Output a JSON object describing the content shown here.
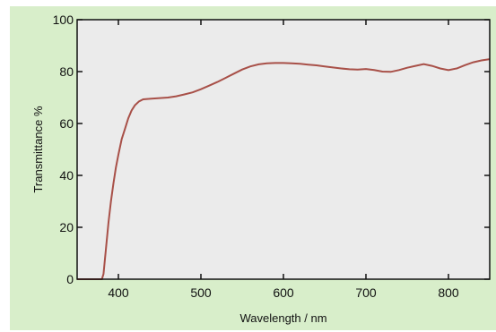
{
  "colors": {
    "background": "#d8eeca",
    "plot_area": "#ebebeb",
    "line": "#a85048",
    "axis": "#111111"
  },
  "chart_data": {
    "type": "line",
    "title": "",
    "xlabel": "Wavelength / nm",
    "ylabel": "Transmittance %",
    "xlim": [
      350,
      850
    ],
    "ylim": [
      0,
      100
    ],
    "xticks": [
      400,
      500,
      600,
      700,
      800
    ],
    "yticks": [
      0,
      20,
      40,
      60,
      80,
      100
    ],
    "grid": false,
    "legend": "none",
    "series": [
      {
        "x": [
          350,
          380,
          382,
          385,
          388,
          391,
          394,
          397,
          400,
          404,
          408,
          412,
          416,
          420,
          425,
          430,
          440,
          450,
          460,
          470,
          480,
          490,
          500,
          510,
          520,
          530,
          540,
          550,
          560,
          570,
          580,
          590,
          600,
          610,
          620,
          630,
          640,
          650,
          660,
          670,
          680,
          690,
          700,
          710,
          720,
          730,
          740,
          750,
          760,
          770,
          780,
          790,
          800,
          810,
          820,
          830,
          840,
          850
        ],
        "y": [
          0,
          0,
          2,
          12,
          22,
          30,
          37,
          43,
          48,
          54,
          58,
          62,
          65,
          67,
          68.5,
          69.3,
          69.6,
          69.8,
          70,
          70.5,
          71.2,
          72,
          73.2,
          74.6,
          76,
          77.6,
          79.2,
          80.8,
          82,
          82.8,
          83.2,
          83.3,
          83.3,
          83.2,
          83,
          82.7,
          82.4,
          82,
          81.6,
          81.2,
          80.9,
          80.8,
          81,
          80.6,
          80,
          79.9,
          80.6,
          81.5,
          82.2,
          82.9,
          82.2,
          81.2,
          80.6,
          81.2,
          82.5,
          83.6,
          84.3,
          84.8
        ]
      }
    ]
  }
}
